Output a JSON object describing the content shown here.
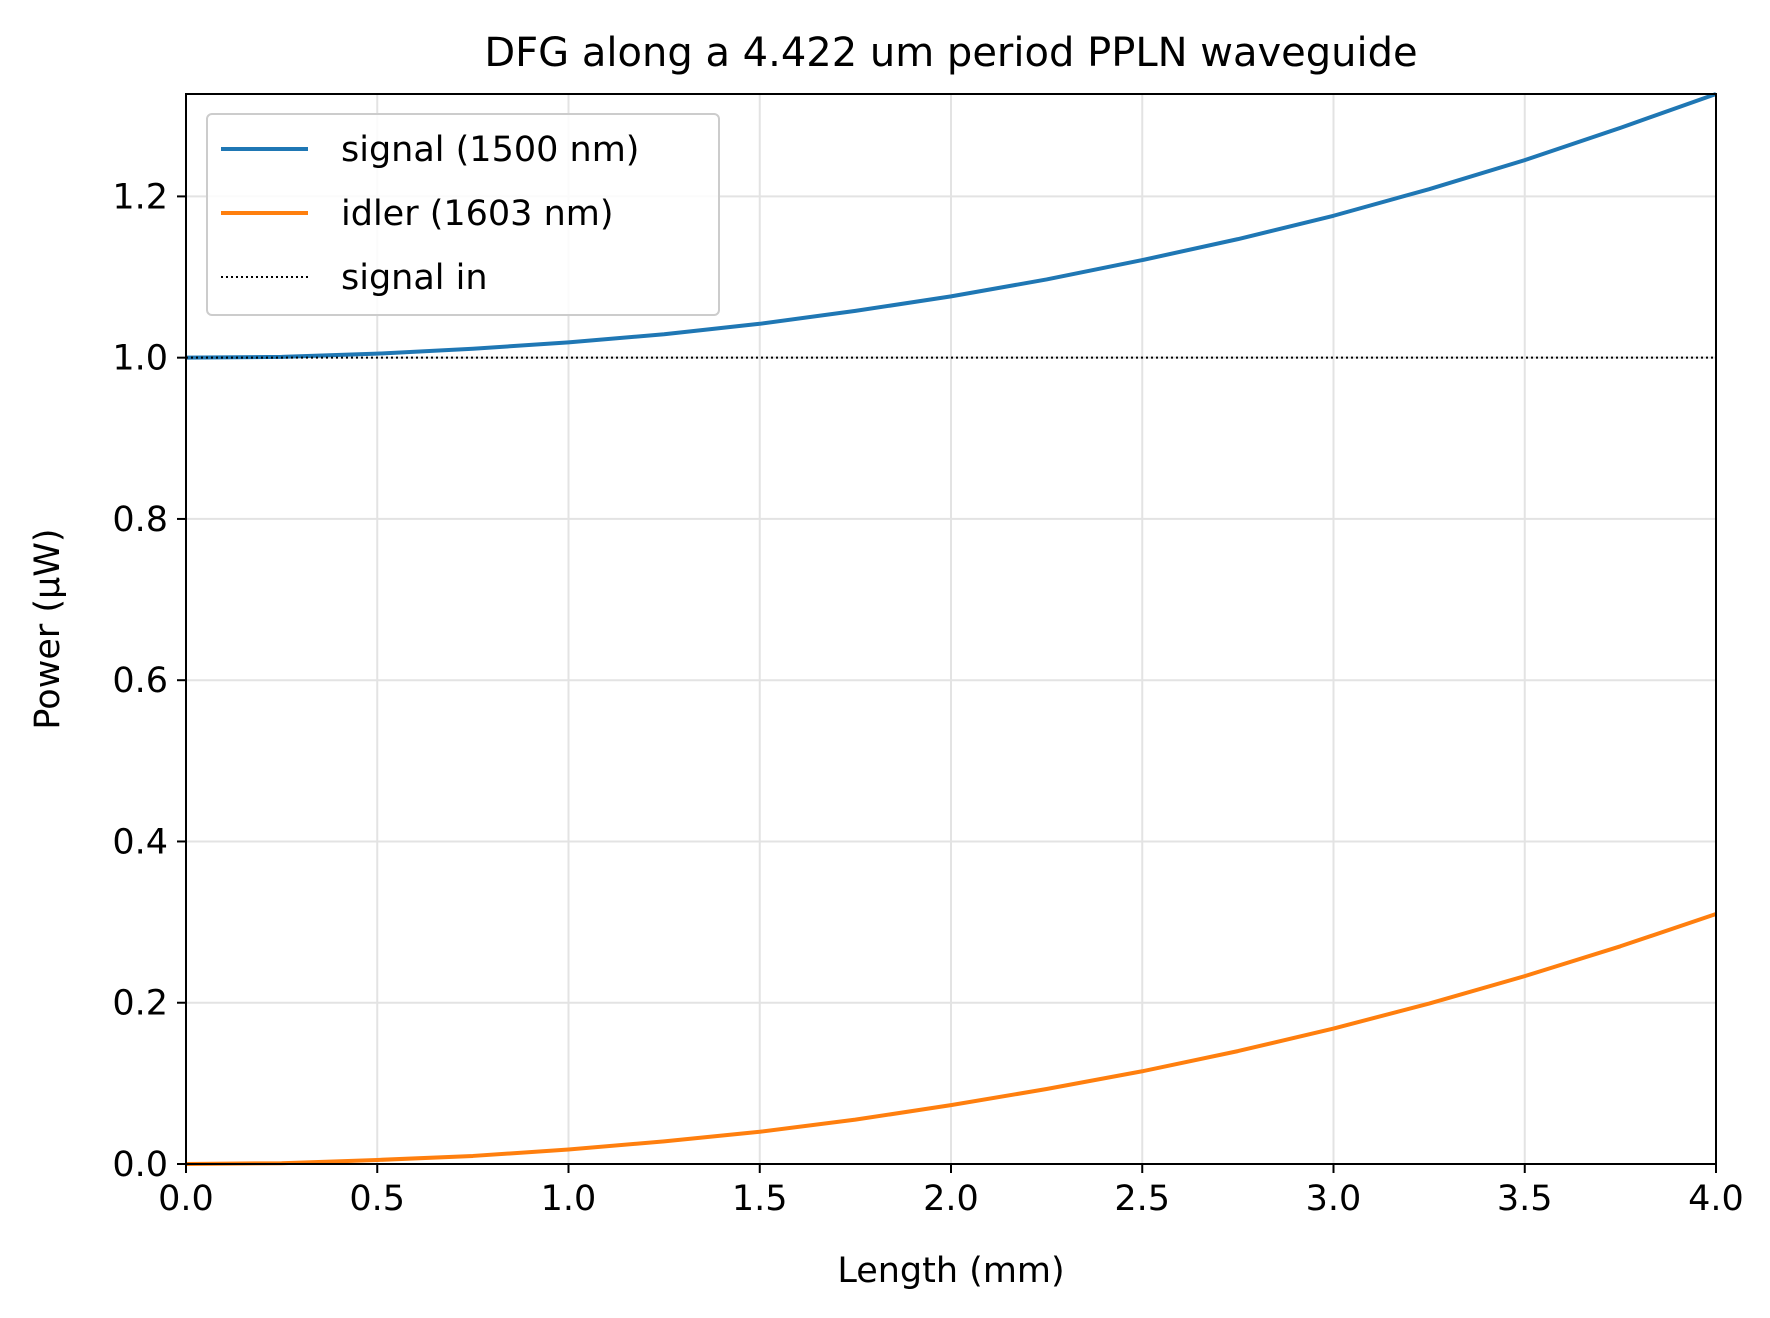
{
  "chart_data": {
    "type": "line",
    "title": "DFG along a 4.422 um period PPLN waveguide",
    "xlabel": "Length (mm)",
    "ylabel": "Power (μW)",
    "xlim": [
      0.0,
      4.0
    ],
    "ylim": [
      0.0,
      1.327
    ],
    "xticks": [
      "0.0",
      "0.5",
      "1.0",
      "1.5",
      "2.0",
      "2.5",
      "3.0",
      "3.5",
      "4.0"
    ],
    "yticks": [
      "0.0",
      "0.2",
      "0.4",
      "0.6",
      "0.8",
      "1.0",
      "1.2"
    ],
    "grid": true,
    "legend_position": "upper-left",
    "x": [
      0.0,
      0.25,
      0.5,
      0.75,
      1.0,
      1.25,
      1.5,
      1.75,
      2.0,
      2.25,
      2.5,
      2.75,
      3.0,
      3.25,
      3.5,
      3.75,
      4.0
    ],
    "series": [
      {
        "name": "signal (1500 nm)",
        "color": "#1f77b4",
        "style": "solid",
        "values": [
          1.0,
          1.001,
          1.005,
          1.011,
          1.019,
          1.029,
          1.042,
          1.058,
          1.076,
          1.097,
          1.121,
          1.147,
          1.176,
          1.209,
          1.245,
          1.285,
          1.327
        ]
      },
      {
        "name": "idler (1603 nm)",
        "color": "#ff7f0e",
        "style": "solid",
        "values": [
          0.0,
          0.001,
          0.005,
          0.01,
          0.018,
          0.028,
          0.04,
          0.055,
          0.073,
          0.093,
          0.115,
          0.14,
          0.168,
          0.199,
          0.233,
          0.27,
          0.31
        ]
      },
      {
        "name": "signal in",
        "color": "#000000",
        "style": "dotted",
        "values": [
          1.0,
          1.0,
          1.0,
          1.0,
          1.0,
          1.0,
          1.0,
          1.0,
          1.0,
          1.0,
          1.0,
          1.0,
          1.0,
          1.0,
          1.0,
          1.0,
          1.0
        ]
      }
    ]
  }
}
